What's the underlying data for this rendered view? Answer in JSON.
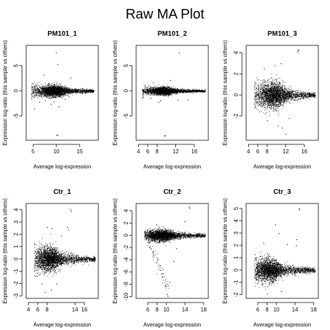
{
  "figure": {
    "title": "Raw MA Plot"
  },
  "chart_data": [
    {
      "type": "scatter",
      "title": "PM101_1",
      "xlabel": "Average log-expression",
      "ylabel": "Expression log-ratio (this sample vs others)",
      "xlim": [
        3.5,
        19
      ],
      "ylim": [
        -9.8,
        9
      ],
      "xticks": [
        5,
        10,
        15
      ],
      "yticks": [
        -5,
        0,
        5
      ],
      "points": {
        "core": {
          "x_range": [
            4.5,
            18
          ],
          "center_x": 9.5,
          "spread_min": 0.25,
          "spread_max": 1.3
        },
        "outliers": [
          [
            5.2,
            -3.5
          ],
          [
            6.3,
            -2.2
          ],
          [
            7.6,
            -1.9
          ],
          [
            10.0,
            -8.8
          ],
          [
            10.2,
            -8.7
          ],
          [
            9.9,
            7.6
          ],
          [
            10.2,
            5.3
          ],
          [
            11.8,
            -1.6
          ],
          [
            12.6,
            -1.1
          ],
          [
            13.0,
            2.6
          ],
          [
            7.2,
            3.2
          ],
          [
            8.8,
            -2.6
          ],
          [
            10.5,
            -3.1
          ],
          [
            9.4,
            -2.1
          ]
        ]
      }
    },
    {
      "type": "scatter",
      "title": "PM101_2",
      "xlabel": "Average log-expression",
      "ylabel": "Expression log-ratio (this sample vs others)",
      "xlim": [
        3.5,
        19
      ],
      "ylim": [
        -9.8,
        9
      ],
      "xticks": [
        4,
        6,
        8,
        12,
        16
      ],
      "yticks": [
        -5,
        0,
        5
      ],
      "points": {
        "core": {
          "x_range": [
            4.8,
            18.3
          ],
          "center_x": 9.5,
          "spread_min": 0.2,
          "spread_max": 0.85
        },
        "outliers": [
          [
            9.5,
            -8.9
          ],
          [
            9.7,
            -8.8
          ],
          [
            12.7,
            7.6
          ],
          [
            8.3,
            -2.2
          ],
          [
            8.7,
            -1.9
          ],
          [
            10.8,
            2.1
          ],
          [
            12.4,
            -1.8
          ],
          [
            14.5,
            -1.7
          ],
          [
            6.6,
            -1.4
          ],
          [
            7.1,
            1.7
          ]
        ]
      }
    },
    {
      "type": "scatter",
      "title": "PM101_3",
      "xlabel": "Average log-expression",
      "ylabel": "Expression log-ratio (this sample vs others)",
      "xlim": [
        3.5,
        19
      ],
      "ylim": [
        -4.3,
        4.7
      ],
      "xticks": [
        4,
        6,
        8,
        12,
        16
      ],
      "yticks": [
        -2,
        0,
        2,
        4
      ],
      "points": {
        "core": {
          "x_range": [
            5.2,
            18.3
          ],
          "center_x": 9.5,
          "spread_min": 0.2,
          "spread_max": 1.35
        },
        "outliers": [
          [
            14.5,
            4.1
          ],
          [
            14.6,
            4.25
          ],
          [
            14.7,
            4.3
          ],
          [
            12.0,
            -3.7
          ],
          [
            10.3,
            -2.9
          ],
          [
            8.0,
            -2.4
          ],
          [
            12.7,
            -2.2
          ],
          [
            9.6,
            2.8
          ],
          [
            10.9,
            3.0
          ],
          [
            7.3,
            2.5
          ],
          [
            11.2,
            -3.1
          ]
        ]
      }
    },
    {
      "type": "scatter",
      "title": "Ctr_1",
      "xlabel": "Average log-expression",
      "ylabel": "Expression log-ratio (this sample vs others)",
      "xlim": [
        3.5,
        19
      ],
      "ylim": [
        -3.2,
        4.5
      ],
      "xticks": [
        4,
        6,
        8,
        14,
        16
      ],
      "yticks": [
        -3,
        -2,
        -1,
        0,
        1,
        2,
        3,
        4
      ],
      "points": {
        "core": {
          "x_range": [
            5.2,
            18.3
          ],
          "center_x": 8.5,
          "spread_min": 0.15,
          "spread_max": 1.05
        },
        "outliers": [
          [
            13.0,
            4.05
          ],
          [
            13.1,
            3.9
          ],
          [
            12.5,
            2.4
          ],
          [
            12.3,
            2.6
          ],
          [
            8.0,
            2.6
          ],
          [
            9.0,
            2.5
          ],
          [
            7.5,
            -2.7
          ],
          [
            8.8,
            -2.5
          ],
          [
            11.0,
            1.9
          ],
          [
            6.8,
            -2.0
          ],
          [
            10.0,
            -2.0
          ]
        ]
      }
    },
    {
      "type": "scatter",
      "title": "Ctr_2",
      "xlabel": "Average log-expression",
      "ylabel": "Expression log-ratio (this sample vs others)",
      "xlim": [
        3.5,
        19
      ],
      "ylim": [
        -10.3,
        5.2
      ],
      "xticks": [
        6,
        8,
        10,
        14,
        18
      ],
      "yticks": [
        -10,
        -8,
        -6,
        -4,
        -2,
        0,
        2,
        4
      ],
      "points": {
        "core": {
          "x_range": [
            5.2,
            18.3
          ],
          "center_x": 9.0,
          "spread_min": 0.25,
          "spread_max": 1.0
        },
        "tail": {
          "x_range": [
            6.5,
            10.5
          ],
          "y_range": [
            -9.8,
            -1.5
          ]
        },
        "outliers": [
          [
            14.8,
            4.7
          ],
          [
            14.9,
            4.5
          ],
          [
            13.9,
            2.3
          ],
          [
            11.5,
            -4.2
          ],
          [
            10.6,
            -7.6
          ],
          [
            10.1,
            -9.6
          ],
          [
            12.1,
            -2.1
          ],
          [
            7.8,
            1.8
          ]
        ]
      }
    },
    {
      "type": "scatter",
      "title": "Ctr_3",
      "xlabel": "Average log-expression",
      "ylabel": "Expression log-ratio (this sample vs others)",
      "xlim": [
        3.5,
        19
      ],
      "ylim": [
        -2.3,
        5.4
      ],
      "xticks": [
        6,
        8,
        10,
        14,
        18
      ],
      "yticks": [
        -2,
        -1,
        0,
        1,
        2,
        3,
        4,
        5
      ],
      "points": {
        "core": {
          "x_range": [
            5.2,
            18.3
          ],
          "center_x": 8.5,
          "spread_min": 0.15,
          "spread_max": 1.0
        },
        "outliers": [
          [
            14.8,
            5.0
          ],
          [
            14.9,
            4.9
          ],
          [
            14.3,
            2.5
          ],
          [
            14.2,
            2.0
          ],
          [
            9.7,
            3.7
          ],
          [
            10.5,
            3.0
          ],
          [
            12.3,
            2.1
          ],
          [
            8.0,
            -1.9
          ],
          [
            11.0,
            -1.7
          ],
          [
            7.2,
            2.2
          ]
        ]
      }
    }
  ]
}
